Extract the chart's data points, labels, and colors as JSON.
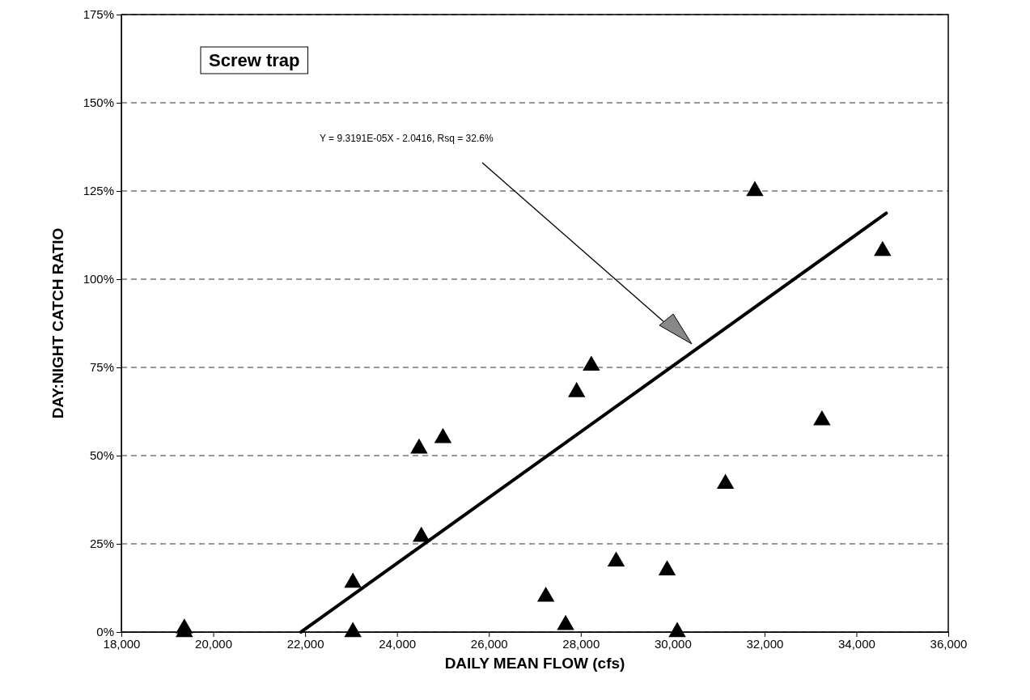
{
  "chart_data": {
    "type": "scatter",
    "xlabel": "DAILY MEAN FLOW (cfs)",
    "ylabel": "DAY:NIGHT CATCH RATIO",
    "annotations": [
      "Screw trap",
      "Y = 9.3191E-05X - 2.0416, Rsq = 32.6%"
    ],
    "xlim": [
      18000,
      36000
    ],
    "xticks": [
      {
        "value": 18000,
        "label": "18,000"
      },
      {
        "value": 20000,
        "label": "20,000"
      },
      {
        "value": 22000,
        "label": "22,000"
      },
      {
        "value": 24000,
        "label": "24,000"
      },
      {
        "value": 26000,
        "label": "26,000"
      },
      {
        "value": 28000,
        "label": "28,000"
      },
      {
        "value": 30000,
        "label": "30,000"
      },
      {
        "value": 32000,
        "label": "32,000"
      },
      {
        "value": 34000,
        "label": "34,000"
      },
      {
        "value": 36000,
        "label": "36,000"
      }
    ],
    "ylim": [
      0,
      175
    ],
    "yticks": [
      {
        "value": 0,
        "label": "0%"
      },
      {
        "value": 25,
        "label": "25%"
      },
      {
        "value": 50,
        "label": "50%"
      },
      {
        "value": 75,
        "label": "75%"
      },
      {
        "value": 100,
        "label": "100%"
      },
      {
        "value": 125,
        "label": "125%"
      },
      {
        "value": 150,
        "label": "150%"
      },
      {
        "value": 175,
        "label": "175%"
      }
    ],
    "grid": "y",
    "series": [
      {
        "marker": "triangle",
        "color": "#000000",
        "x": [
          19370,
          19370,
          23040,
          23040,
          24480,
          24530,
          25000,
          27240,
          27670,
          27910,
          28230,
          28770,
          29880,
          30100,
          31150,
          31790,
          33250,
          34570
        ],
        "values": [
          1,
          0,
          14,
          0,
          52,
          27,
          55,
          10,
          2,
          68,
          75.5,
          20,
          17.5,
          0,
          42,
          125,
          60,
          108
        ]
      },
      {
        "type": "line",
        "color": "#000000",
        "x": [
          21910,
          34650
        ],
        "values": [
          0,
          118.7
        ]
      }
    ]
  }
}
